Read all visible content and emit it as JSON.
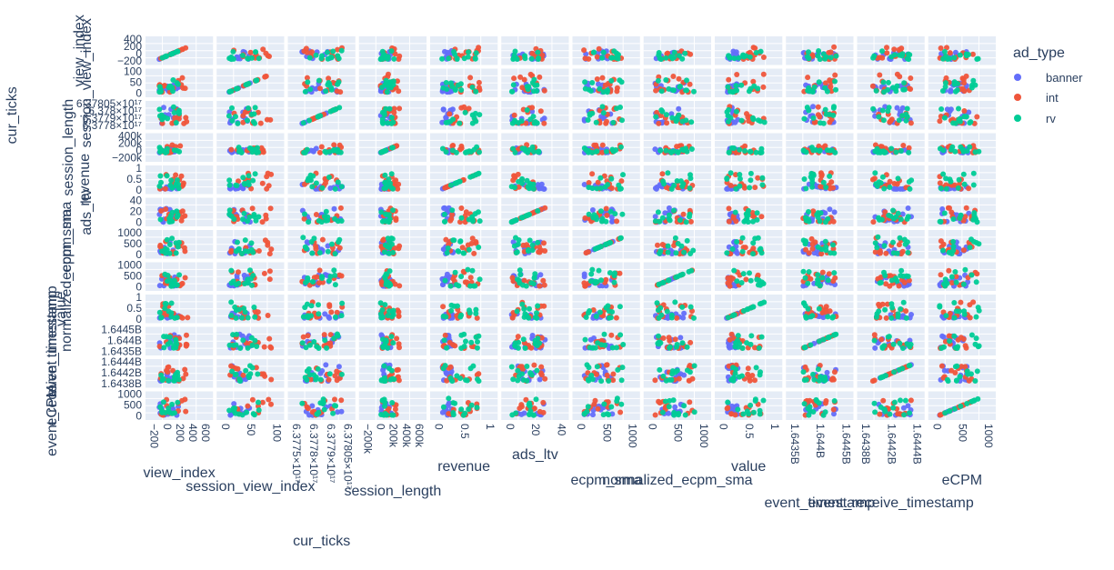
{
  "chart_data": {
    "type": "scatter",
    "subtype": "scatter_matrix",
    "dimensions": [
      {
        "name": "view_index",
        "range": [
          -200,
          700
        ],
        "ticks": [
          "−200",
          "0",
          "200",
          "400",
          "600"
        ],
        "y_ticks": [
          "400",
          "200",
          "0",
          "−200"
        ]
      },
      {
        "name": "session_view_index",
        "range": [
          -10,
          110
        ],
        "ticks": [
          "0",
          "50",
          "100"
        ],
        "y_ticks": [
          "100",
          "50",
          "0"
        ]
      },
      {
        "name": "cur_ticks",
        "range": [
          6.37764e+17,
          6.37815e+17
        ],
        "ticks": [
          "6.3775×10¹⁷",
          "6.3778×10¹⁷",
          "6.3779×10¹⁷",
          "6.37805×10¹⁷"
        ],
        "y_ticks": [
          "6.37805×10¹⁷",
          "6.378×10¹⁷",
          "6.3779×10¹⁷",
          "6.3778×10¹⁷"
        ]
      },
      {
        "name": "session_length",
        "range": [
          -250000,
          700000
        ],
        "ticks": [
          "−200k",
          "0",
          "200k",
          "400k",
          "600k"
        ],
        "y_ticks": [
          "400k",
          "200k",
          "0",
          "−200k"
        ]
      },
      {
        "name": "revenue",
        "range": [
          -0.1,
          1.25
        ],
        "ticks": [
          "0",
          "0.5",
          "1"
        ],
        "y_ticks": [
          "1",
          "0.5",
          "0"
        ]
      },
      {
        "name": "ads_ltv",
        "range": [
          -2,
          44
        ],
        "ticks": [
          "0",
          "20",
          "40"
        ],
        "y_ticks": [
          "40",
          "20",
          "0"
        ]
      },
      {
        "name": "ecpm_sma",
        "range": [
          -80,
          1150
        ],
        "ticks": [
          "0",
          "500",
          "1000"
        ],
        "y_ticks": [
          "1000",
          "500",
          "0"
        ]
      },
      {
        "name": "normalized_ecpm_sma",
        "range": [
          -80,
          1150
        ],
        "ticks": [
          "0",
          "500",
          "1000"
        ],
        "y_ticks": [
          "1000",
          "500",
          "0"
        ]
      },
      {
        "name": "value",
        "range": [
          -0.1,
          1.25
        ],
        "ticks": [
          "0",
          "0.5",
          "1"
        ],
        "y_ticks": [
          "1",
          "0.5",
          "0"
        ]
      },
      {
        "name": "event_timestamp",
        "range": [
          1643200000.0,
          1644900000.0
        ],
        "ticks": [
          "1.6435B",
          "1.644B",
          "1.6445B"
        ],
        "y_ticks": [
          "1.6445B",
          "1.644B",
          "1.6435B"
        ]
      },
      {
        "name": "event_receive_timestamp",
        "range": [
          1643680000.0,
          1644480000.0
        ],
        "ticks": [
          "1.6438B",
          "1.6442B",
          "1.6444B"
        ],
        "y_ticks": [
          "1.6444B",
          "1.6442B",
          "1.6438B"
        ]
      },
      {
        "name": "eCPM",
        "range": [
          -80,
          1150
        ],
        "ticks": [
          "0",
          "500",
          "1000"
        ],
        "y_ticks": [
          "1000",
          "500",
          "0"
        ]
      }
    ],
    "legend_title": "ad_type",
    "legend_placement": "right",
    "series": [
      {
        "name": "banner",
        "color": "#636efa"
      },
      {
        "name": "int",
        "color": "#ef553b"
      },
      {
        "name": "rv",
        "color": "#00cc96"
      }
    ],
    "ranges": {
      "view_index": {
        "banner": [
          -100,
          250
        ],
        "int": [
          -100,
          400
        ],
        "rv": [
          -100,
          250
        ]
      },
      "session_view_index": {
        "banner": [
          0,
          50
        ],
        "int": [
          0,
          100
        ],
        "rv": [
          0,
          70
        ]
      },
      "cur_ticks": {
        "banner": [
          6.3777e+17,
          6.3781e+17
        ],
        "int": [
          6.3777e+17,
          6.3781e+17
        ],
        "rv": [
          6.3777e+17,
          6.3781e+17
        ]
      },
      "session_length": {
        "banner": [
          0,
          200000
        ],
        "int": [
          0,
          350000
        ],
        "rv": [
          0,
          250000
        ]
      },
      "revenue": {
        "banner": [
          0,
          0.3
        ],
        "int": [
          0,
          1.0
        ],
        "rv": [
          0,
          1.0
        ]
      },
      "ads_ltv": {
        "banner": [
          0,
          30
        ],
        "int": [
          0,
          30
        ],
        "rv": [
          0,
          25
        ]
      },
      "ecpm_sma": {
        "banner": [
          0,
          700
        ],
        "int": [
          0,
          900
        ],
        "rv": [
          0,
          950
        ]
      },
      "normalized_ecpm_sma": {
        "banner": [
          0,
          700
        ],
        "int": [
          0,
          900
        ],
        "rv": [
          0,
          950
        ]
      },
      "value": {
        "banner": [
          0,
          0.3
        ],
        "int": [
          0,
          1.0
        ],
        "rv": [
          0,
          1.0
        ]
      },
      "event_timestamp": {
        "banner": [
          1643500000.0,
          1644600000.0
        ],
        "int": [
          1643500000.0,
          1644600000.0
        ],
        "rv": [
          1643500000.0,
          1644600000.0
        ]
      },
      "event_receive_timestamp": {
        "banner": [
          1643800000.0,
          1644400000.0
        ],
        "int": [
          1643800000.0,
          1644400000.0
        ],
        "rv": [
          1643800000.0,
          1644400000.0
        ]
      },
      "eCPM": {
        "banner": [
          0,
          700
        ],
        "int": [
          0,
          900
        ],
        "rv": [
          0,
          950
        ]
      }
    },
    "grid": true,
    "background": "#e5ecf6"
  }
}
